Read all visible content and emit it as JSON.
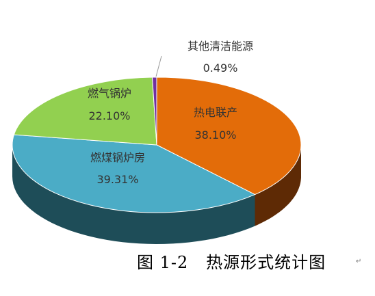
{
  "chart_data": {
    "type": "pie",
    "slices": [
      {
        "label": "热电联产",
        "value_label": "38.10%",
        "value": 38.1,
        "color": "#E36C09",
        "dark": "#5E2A05"
      },
      {
        "label": "燃煤锅炉房",
        "value_label": "39.31%",
        "value": 39.31,
        "color": "#4BACC6",
        "dark": "#1E4D58"
      },
      {
        "label": "燃气锅炉",
        "value_label": "22.10%",
        "value": 22.1,
        "color": "#92D050",
        "dark": "#4F7326"
      },
      {
        "label": "其他清洁能源",
        "value_label": "0.49%",
        "value": 0.49,
        "color": "#7030A0",
        "dark": "#3A1854"
      }
    ]
  },
  "caption": {
    "figure": "图 1-2",
    "title": "热源形式统计图",
    "mark": "↵"
  }
}
